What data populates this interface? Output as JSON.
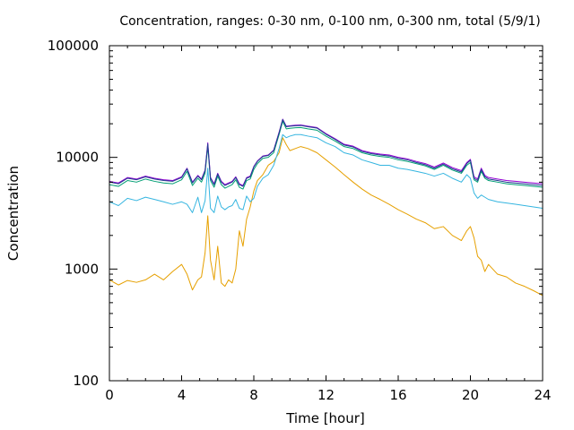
{
  "chart_data": {
    "type": "line",
    "title": "Concentration, ranges: 0-30 nm, 0-100 nm, 0-300 nm, total (5/9/1)",
    "xlabel": "Time [hour]",
    "ylabel": "Concentration",
    "xlim": [
      0,
      24
    ],
    "ylim": [
      100,
      100000
    ],
    "yscale": "log",
    "grid": false,
    "x_ticks": [
      0,
      4,
      8,
      12,
      16,
      20,
      24
    ],
    "x_tick_labels": [
      "0",
      "4",
      "8",
      "12",
      "16",
      "20",
      "24"
    ],
    "y_ticks": [
      100,
      1000,
      10000,
      100000
    ],
    "y_tick_labels": [
      "100",
      "1000",
      "10000",
      "100000"
    ],
    "series": [
      {
        "color": "#e6a000",
        "x": [
          0,
          0.5,
          1,
          1.5,
          2,
          2.5,
          3,
          3.5,
          4,
          4.3,
          4.6,
          4.9,
          5.1,
          5.3,
          5.45,
          5.6,
          5.8,
          6,
          6.2,
          6.4,
          6.6,
          6.8,
          7,
          7.2,
          7.4,
          7.6,
          7.8,
          8,
          8.2,
          8.5,
          8.8,
          9.1,
          9.4,
          9.6,
          9.8,
          10,
          10.3,
          10.6,
          11,
          11.5,
          12,
          12.5,
          13,
          13.5,
          14,
          14.5,
          15,
          15.5,
          16,
          16.5,
          17,
          17.5,
          18,
          18.5,
          19,
          19.5,
          19.8,
          20,
          20.2,
          20.4,
          20.6,
          20.8,
          21,
          21.5,
          22,
          22.5,
          23,
          23.5,
          24
        ],
        "values": [
          800,
          720,
          790,
          760,
          800,
          900,
          800,
          950,
          1100,
          900,
          650,
          800,
          850,
          1400,
          3000,
          1200,
          800,
          1600,
          750,
          700,
          800,
          750,
          1000,
          2200,
          1600,
          2800,
          3600,
          5000,
          6200,
          7000,
          8500,
          9200,
          11000,
          15000,
          13000,
          11500,
          12000,
          12500,
          12000,
          11000,
          9500,
          8200,
          7000,
          6000,
          5200,
          4600,
          4200,
          3800,
          3400,
          3100,
          2800,
          2600,
          2300,
          2400,
          2000,
          1800,
          2200,
          2400,
          1900,
          1300,
          1200,
          950,
          1100,
          900,
          850,
          750,
          700,
          640,
          580
        ]
      },
      {
        "color": "#35b5e0",
        "x": [
          0,
          0.5,
          1,
          1.5,
          2,
          2.5,
          3,
          3.5,
          4,
          4.3,
          4.6,
          4.9,
          5.1,
          5.3,
          5.45,
          5.6,
          5.8,
          6,
          6.2,
          6.4,
          6.6,
          6.8,
          7,
          7.2,
          7.4,
          7.6,
          7.8,
          8,
          8.2,
          8.5,
          8.8,
          9.1,
          9.4,
          9.6,
          9.8,
          10,
          10.3,
          10.6,
          11,
          11.5,
          12,
          12.5,
          13,
          13.5,
          14,
          14.5,
          15,
          15.5,
          16,
          16.5,
          17,
          17.5,
          18,
          18.5,
          19,
          19.5,
          19.8,
          20,
          20.2,
          20.4,
          20.6,
          20.8,
          21,
          21.5,
          22,
          22.5,
          23,
          23.5,
          24
        ],
        "values": [
          4000,
          3700,
          4300,
          4100,
          4400,
          4200,
          4000,
          3800,
          4000,
          3800,
          3200,
          4400,
          3200,
          4100,
          8000,
          3500,
          3200,
          4500,
          3600,
          3400,
          3600,
          3700,
          4200,
          3500,
          3400,
          4500,
          4000,
          4300,
          5500,
          6500,
          7000,
          8500,
          12000,
          16000,
          15000,
          15500,
          16000,
          16000,
          15500,
          15000,
          13500,
          12500,
          11000,
          10500,
          9500,
          9000,
          8500,
          8500,
          8000,
          7800,
          7500,
          7200,
          6800,
          7200,
          6500,
          6000,
          7000,
          6500,
          4800,
          4300,
          4600,
          4400,
          4200,
          4000,
          3900,
          3800,
          3700,
          3600,
          3500
        ]
      },
      {
        "color": "#009e73",
        "x": [
          0,
          0.5,
          1,
          1.5,
          2,
          2.5,
          3,
          3.5,
          4,
          4.3,
          4.6,
          4.9,
          5.1,
          5.3,
          5.45,
          5.6,
          5.8,
          6,
          6.2,
          6.4,
          6.6,
          6.8,
          7,
          7.2,
          7.4,
          7.6,
          7.8,
          8,
          8.2,
          8.5,
          8.8,
          9.1,
          9.4,
          9.6,
          9.8,
          10,
          10.3,
          10.6,
          11,
          11.5,
          12,
          12.5,
          13,
          13.5,
          14,
          14.5,
          15,
          15.5,
          16,
          16.5,
          17,
          17.5,
          18,
          18.5,
          19,
          19.5,
          19.8,
          20,
          20.2,
          20.4,
          20.6,
          20.8,
          21,
          21.5,
          22,
          22.5,
          23,
          23.5,
          24
        ],
        "values": [
          5700,
          5500,
          6200,
          6000,
          6400,
          6100,
          5900,
          5800,
          6300,
          7500,
          5600,
          6500,
          6000,
          7200,
          12500,
          6200,
          5400,
          6800,
          5700,
          5300,
          5500,
          5700,
          6300,
          5400,
          5200,
          6200,
          6400,
          7800,
          8800,
          9800,
          10000,
          11000,
          16000,
          21000,
          18000,
          18200,
          18400,
          18500,
          18000,
          17500,
          15500,
          14000,
          12500,
          12000,
          11000,
          10500,
          10200,
          10000,
          9500,
          9200,
          8800,
          8400,
          7800,
          8500,
          7700,
          7200,
          8500,
          9000,
          6300,
          6000,
          7500,
          6500,
          6200,
          6000,
          5800,
          5700,
          5600,
          5500,
          5400
        ]
      },
      {
        "color": "#9400d3",
        "x": [
          0,
          0.5,
          1,
          1.5,
          2,
          2.5,
          3,
          3.5,
          4,
          4.3,
          4.6,
          4.9,
          5.1,
          5.3,
          5.45,
          5.6,
          5.8,
          6,
          6.2,
          6.4,
          6.6,
          6.8,
          7,
          7.2,
          7.4,
          7.6,
          7.8,
          8,
          8.2,
          8.5,
          8.8,
          9.1,
          9.4,
          9.6,
          9.8,
          10,
          10.3,
          10.6,
          11,
          11.5,
          12,
          12.5,
          13,
          13.5,
          14,
          14.5,
          15,
          15.5,
          16,
          16.5,
          17,
          17.5,
          18,
          18.5,
          19,
          19.5,
          19.8,
          20,
          20.2,
          20.4,
          20.6,
          20.8,
          21,
          21.5,
          22,
          22.5,
          23,
          23.5,
          24
        ],
        "values": [
          6100,
          5900,
          6600,
          6400,
          6800,
          6500,
          6300,
          6200,
          6700,
          8000,
          6000,
          6900,
          6400,
          7700,
          13500,
          6600,
          5800,
          7200,
          6100,
          5700,
          5900,
          6100,
          6700,
          5800,
          5600,
          6600,
          6800,
          8300,
          9300,
          10300,
          10500,
          11600,
          16800,
          22000,
          19000,
          19200,
          19400,
          19500,
          19000,
          18500,
          16300,
          14700,
          13100,
          12600,
          11500,
          11000,
          10700,
          10500,
          10000,
          9700,
          9200,
          8800,
          8200,
          8900,
          8100,
          7600,
          9000,
          9600,
          6700,
          6400,
          8000,
          6900,
          6600,
          6400,
          6200,
          6100,
          6000,
          5900,
          5800
        ]
      },
      {
        "color": "#1f3d8f",
        "x": [
          0,
          0.5,
          1,
          1.5,
          2,
          2.5,
          3,
          3.5,
          4,
          4.3,
          4.6,
          4.9,
          5.1,
          5.3,
          5.45,
          5.6,
          5.8,
          6,
          6.2,
          6.4,
          6.6,
          6.8,
          7,
          7.2,
          7.4,
          7.6,
          7.8,
          8,
          8.2,
          8.5,
          8.8,
          9.1,
          9.4,
          9.6,
          9.8,
          10,
          10.3,
          10.6,
          11,
          11.5,
          12,
          12.5,
          13,
          13.5,
          14,
          14.5,
          15,
          15.5,
          16,
          16.5,
          17,
          17.5,
          18,
          18.5,
          19,
          19.5,
          19.8,
          20,
          20.2,
          20.4,
          20.6,
          20.8,
          21,
          21.5,
          22,
          22.5,
          23,
          23.5,
          24
        ],
        "values": [
          6000,
          5800,
          6500,
          6300,
          6700,
          6400,
          6200,
          6100,
          6600,
          7900,
          5900,
          6800,
          6300,
          7600,
          13200,
          6500,
          5700,
          7100,
          6000,
          5600,
          5800,
          6000,
          6600,
          5700,
          5500,
          6500,
          6700,
          8200,
          9200,
          10200,
          10400,
          11500,
          16600,
          21800,
          18800,
          19000,
          19200,
          19300,
          18800,
          18300,
          16100,
          14500,
          12900,
          12400,
          11300,
          10800,
          10500,
          10300,
          9800,
          9500,
          9000,
          8600,
          8000,
          8700,
          7900,
          7400,
          8800,
          9400,
          6500,
          6200,
          7800,
          6700,
          6400,
          6200,
          6000,
          5900,
          5800,
          5700,
          5600
        ]
      }
    ]
  }
}
